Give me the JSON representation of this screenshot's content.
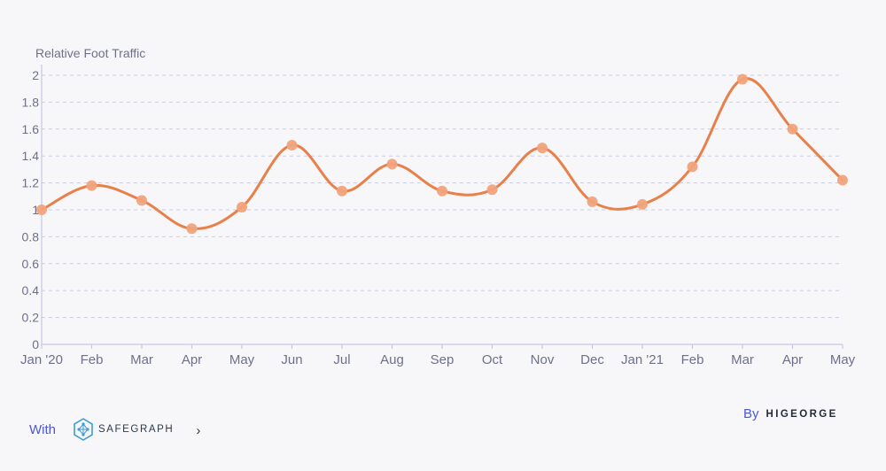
{
  "chart_data": {
    "type": "line",
    "title": "",
    "ylabel": "Relative Foot Traffic",
    "xlabel": "",
    "categories": [
      "Jan '20",
      "Feb",
      "Mar",
      "Apr",
      "May",
      "Jun",
      "Jul",
      "Aug",
      "Sep",
      "Oct",
      "Nov",
      "Dec",
      "Jan '21",
      "Feb",
      "Mar",
      "Apr",
      "May"
    ],
    "series": [
      {
        "values": [
          1.0,
          1.18,
          1.07,
          0.86,
          1.02,
          1.48,
          1.14,
          1.34,
          1.14,
          1.15,
          1.46,
          1.06,
          1.04,
          1.32,
          1.97,
          1.6,
          1.22
        ]
      }
    ],
    "ylim": [
      0,
      2
    ],
    "yticks": [
      "0",
      "0.2",
      "0.4",
      "0.6",
      "0.8",
      "1",
      "1.2",
      "1.4",
      "1.6",
      "1.8",
      "2"
    ],
    "grid": "horizontal dashed",
    "line_color": "#e8804a",
    "point_color": "#f0a37c"
  },
  "footer": {
    "with_label": "With",
    "safegraph_logo_text": "SAFEGRAPH",
    "chevron": "›",
    "by_label": "By",
    "higeorge_logo_text": "HIGEORGE"
  }
}
